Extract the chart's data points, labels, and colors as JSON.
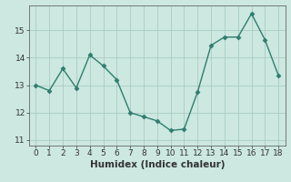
{
  "x": [
    0,
    1,
    2,
    3,
    4,
    5,
    6,
    7,
    8,
    9,
    10,
    11,
    12,
    13,
    14,
    15,
    16,
    17,
    18
  ],
  "y": [
    13.0,
    12.8,
    13.6,
    12.9,
    14.1,
    13.7,
    13.2,
    12.0,
    11.85,
    11.7,
    11.35,
    11.4,
    12.75,
    14.45,
    14.75,
    14.75,
    15.6,
    14.65,
    13.35
  ],
  "line_color": "#2e7d6e",
  "marker": "D",
  "marker_size": 2.5,
  "bg_color": "#cce8e0",
  "grid_color": "#aaccc4",
  "xlabel": "Humidex (Indice chaleur)",
  "xlim": [
    -0.5,
    18.5
  ],
  "ylim": [
    10.8,
    15.9
  ],
  "yticks": [
    11,
    12,
    13,
    14,
    15
  ],
  "xticks": [
    0,
    1,
    2,
    3,
    4,
    5,
    6,
    7,
    8,
    9,
    10,
    11,
    12,
    13,
    14,
    15,
    16,
    17,
    18
  ],
  "tick_fontsize": 6.5,
  "xlabel_fontsize": 7.5,
  "tick_color": "#333333",
  "spine_color": "#666666",
  "linewidth": 1.0
}
